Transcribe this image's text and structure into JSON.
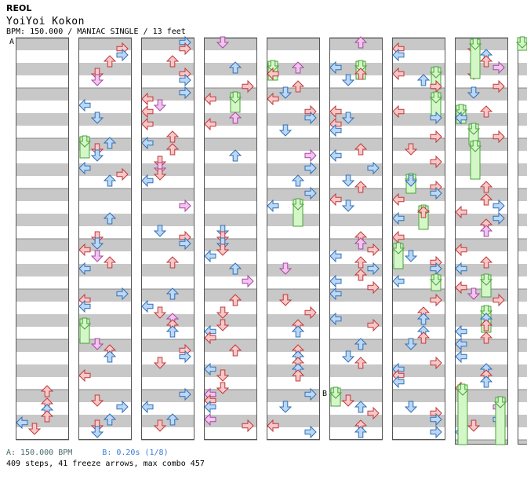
{
  "header": {
    "artist": "REOL",
    "title": "YoiYoi Kokon",
    "info": "BPM: 150.000 / MANIAC SINGLE / 13 feet"
  },
  "markers": {
    "a": "A",
    "b": "B"
  },
  "footer": {
    "bpm_a": "A: 150.000 BPM",
    "bpm_b": "B: 0.20s (1/8)",
    "stats": "409 steps, 41 freeze arrows, max combo 457"
  },
  "colors": {
    "stripe": "#c8c8c8",
    "border": "#555555",
    "quarter_arrow": "#f7c8c8",
    "quarter_stroke": "#c0393b",
    "eighth_arrow": "#bcd8f7",
    "eighth_stroke": "#2f6fb5",
    "sixteenth_arrow": "#f4c4f0",
    "sixteenth_stroke": "#a24aa0",
    "freeze_fill": "#d4f7c8",
    "freeze_stroke": "#4aa03a"
  }
}
